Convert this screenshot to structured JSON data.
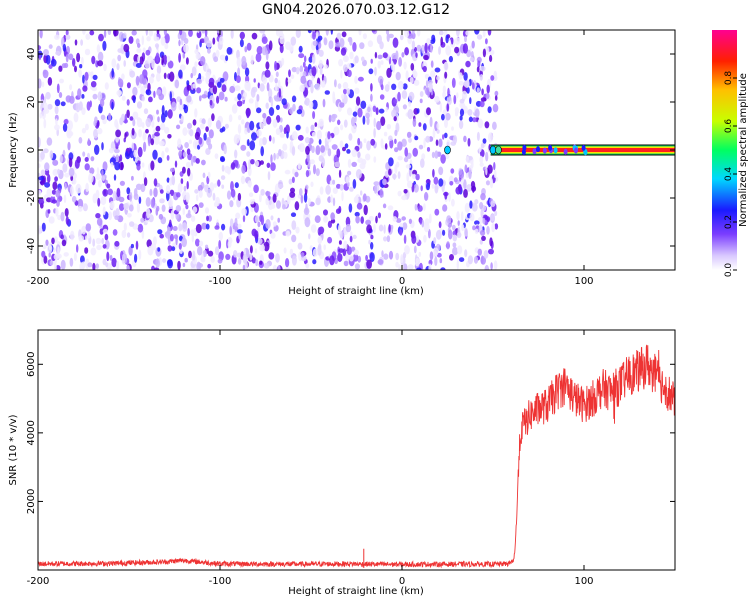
{
  "title": "GN04.2026.070.03.12.G12",
  "chart_data": [
    {
      "type": "heatmap",
      "xlabel": "Height of straight line (km)",
      "ylabel": "Frequency (Hz)",
      "xlim": [
        -200,
        150
      ],
      "ylim": [
        -50,
        50
      ],
      "x_ticks": [
        "-200",
        "-100",
        "0",
        "100"
      ],
      "y_ticks": [
        "40",
        "20",
        "0",
        "-20",
        "-40"
      ],
      "noise_region_x": [
        -200,
        52
      ],
      "signal": {
        "x_start": 52,
        "x_end": 150,
        "frequency": 0,
        "normalized_amplitude": 1.0
      },
      "colorbar": {
        "label": "Normalized spectral amplitude",
        "range": [
          0,
          1
        ],
        "ticks": [
          "0.0",
          "0.2",
          "0.4",
          "0.6",
          "0.8"
        ]
      }
    },
    {
      "type": "line",
      "xlabel": "Height of straight line (km)",
      "ylabel": "SNR (10 * v/v)",
      "xlim": [
        -200,
        150
      ],
      "ylim": [
        0,
        7000
      ],
      "x_ticks": [
        "-200",
        "-100",
        "0",
        "100"
      ],
      "y_ticks": [
        "6000",
        "4000",
        "2000"
      ],
      "color": "#ee3333",
      "series": [
        {
          "x": [
            -200,
            -160,
            -130,
            -120,
            -100,
            -60,
            -30,
            -20,
            0,
            30,
            50,
            58,
            61,
            62,
            63,
            64,
            65,
            66,
            68,
            70,
            75,
            80,
            85,
            90,
            95,
            100,
            105,
            110,
            115,
            120,
            125,
            130,
            135,
            140,
            145,
            150
          ],
          "y": [
            180,
            190,
            240,
            280,
            180,
            170,
            180,
            170,
            165,
            170,
            170,
            180,
            250,
            500,
            1500,
            3000,
            3900,
            4200,
            4300,
            4500,
            4700,
            4800,
            5200,
            5400,
            5000,
            4800,
            5000,
            5300,
            5200,
            5400,
            5700,
            5800,
            6000,
            5600,
            5300,
            4900
          ]
        }
      ]
    }
  ]
}
